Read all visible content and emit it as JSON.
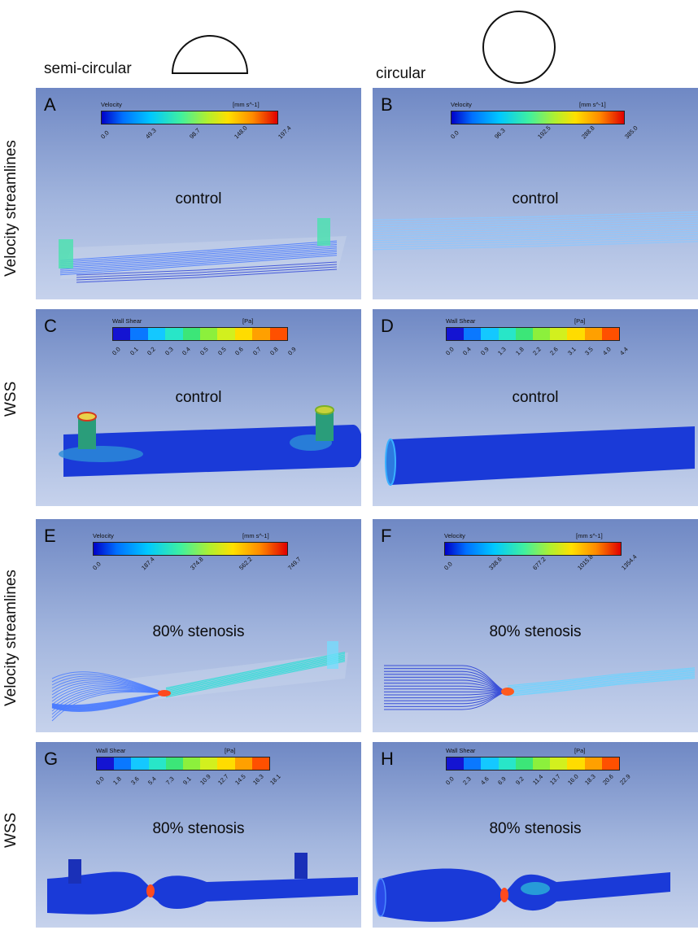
{
  "columns": {
    "left": "semi-circular",
    "right": "circular"
  },
  "rows": {
    "r1": "Velocity streamlines",
    "r2": "WSS",
    "r3": "Velocity streamlines",
    "r4": "WSS"
  },
  "panels": {
    "A": {
      "letter": "A",
      "scenario": "control",
      "legend_title": "Velocity",
      "legend_unit": "[mm s^-1]",
      "ticks": [
        "0.0",
        "49.3",
        "98.7",
        "148.0",
        "197.4"
      ]
    },
    "B": {
      "letter": "B",
      "scenario": "control",
      "legend_title": "Velocity",
      "legend_unit": "[mm s^-1]",
      "ticks": [
        "0.0",
        "96.3",
        "192.5",
        "288.8",
        "385.0"
      ]
    },
    "C": {
      "letter": "C",
      "scenario": "control",
      "legend_title": "Wall Shear",
      "legend_unit": "[Pa]",
      "ticks": [
        "0.0",
        "0.1",
        "0.2",
        "0.3",
        "0.4",
        "0.5",
        "0.5",
        "0.6",
        "0.7",
        "0.8",
        "0.9"
      ]
    },
    "D": {
      "letter": "D",
      "scenario": "control",
      "legend_title": "Wall Shear",
      "legend_unit": "[Pa]",
      "ticks": [
        "0.0",
        "0.4",
        "0.9",
        "1.3",
        "1.8",
        "2.2",
        "2.6",
        "3.1",
        "3.5",
        "4.0",
        "4.4"
      ]
    },
    "E": {
      "letter": "E",
      "scenario": "80% stenosis",
      "legend_title": "Velocity",
      "legend_unit": "[mm s^-1]",
      "ticks": [
        "0.0",
        "187.4",
        "374.8",
        "562.2",
        "749.7"
      ]
    },
    "F": {
      "letter": "F",
      "scenario": "80% stenosis",
      "legend_title": "Velocity",
      "legend_unit": "[mm s^-1]",
      "ticks": [
        "0.0",
        "338.6",
        "677.2",
        "1015.8",
        "1354.4"
      ]
    },
    "G": {
      "letter": "G",
      "scenario": "80% stenosis",
      "legend_title": "Wall Shear",
      "legend_unit": "[Pa]",
      "ticks": [
        "0.0",
        "1.8",
        "3.6",
        "5.4",
        "7.3",
        "9.1",
        "10.9",
        "12.7",
        "14.5",
        "16.3",
        "18.1"
      ]
    },
    "H": {
      "letter": "H",
      "scenario": "80% stenosis",
      "legend_title": "Wall Shear",
      "legend_unit": "[Pa]",
      "ticks": [
        "0.0",
        "2.3",
        "4.6",
        "6.9",
        "9.2",
        "11.4",
        "13.7",
        "16.0",
        "18.3",
        "20.6",
        "22.9"
      ]
    }
  },
  "colors": {
    "band_colors": [
      "#1414d2",
      "#0a78ff",
      "#14c8ff",
      "#28e6c8",
      "#3ce678",
      "#8cf03c",
      "#d2f01e",
      "#ffdc00",
      "#ffa000",
      "#ff5000"
    ],
    "vessel": "#1a3ad8",
    "streamline": "#5ab4ff"
  }
}
